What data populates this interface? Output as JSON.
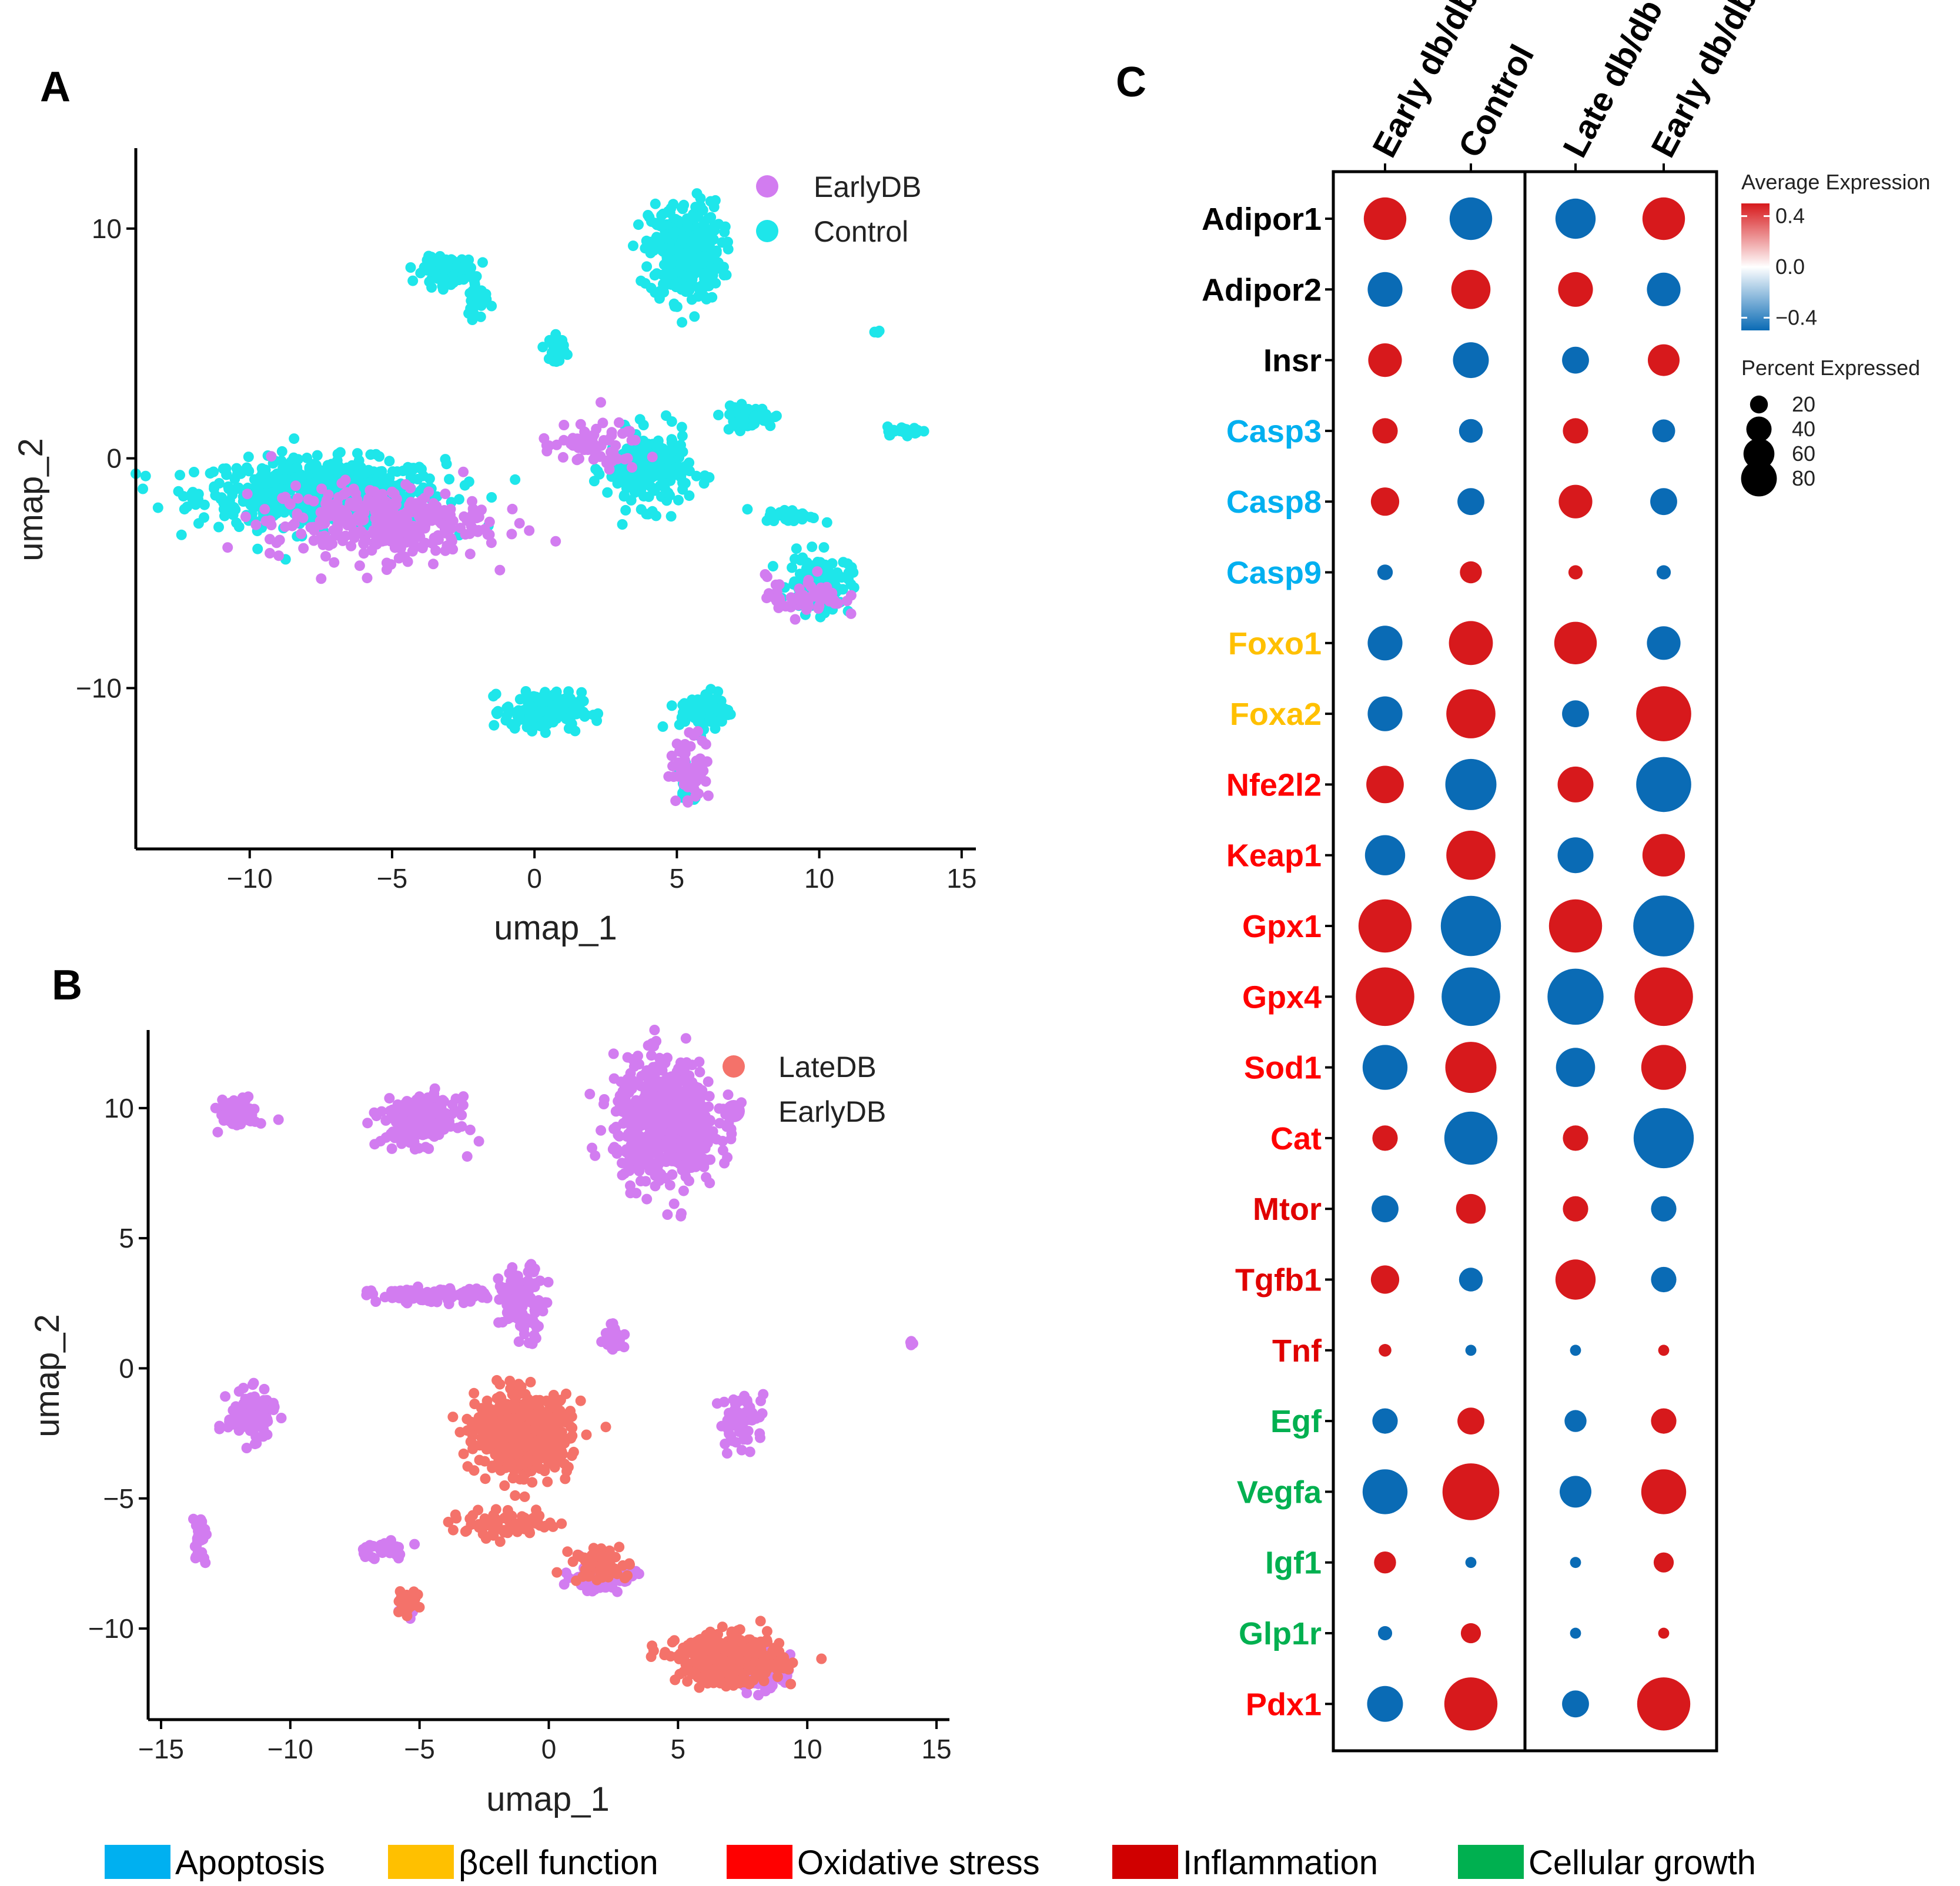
{
  "panel_letters": [
    "A",
    "B",
    "C"
  ],
  "colors": {
    "earlydb": "#d27cf0",
    "control": "#1ee6ea",
    "latedb": "#f4726a",
    "high": "#d7191c",
    "mid": "#ffffff",
    "low": "#0a6bb5"
  },
  "chart_data": [
    {
      "type": "scatter",
      "panel": "A",
      "xlabel": "umap_1",
      "ylabel": "umap_2",
      "xlim": [
        -14,
        15.5
      ],
      "ylim": [
        -17,
        13.5
      ],
      "xticks": [
        -10,
        -5,
        0,
        5,
        10,
        15
      ],
      "yticks": [
        -10,
        0,
        10
      ],
      "xtick_labels": [
        "−10",
        "−5",
        "0",
        "5",
        "10",
        "15"
      ],
      "ytick_labels": [
        "−10",
        "0",
        "10"
      ],
      "legend": [
        "EarlyDB",
        "Control"
      ],
      "series": [
        {
          "name": "EarlyDB",
          "color": "#d27cf0",
          "clusters": [
            [
              -5.5,
              -2.8,
              4.2,
              1.8,
              320
            ],
            [
              2.0,
              0.5,
              2.0,
              1.2,
              60
            ],
            [
              9.5,
              -6.0,
              1.5,
              1.0,
              60
            ],
            [
              5.5,
              -13.5,
              0.8,
              1.6,
              60
            ]
          ]
        },
        {
          "name": "Control",
          "color": "#1ee6ea",
          "clusters": [
            [
              -7.5,
              -1.5,
              4.8,
              1.6,
              600
            ],
            [
              5.3,
              9.0,
              1.4,
              2.4,
              350
            ],
            [
              -3.0,
              8.2,
              1.0,
              0.6,
              120
            ],
            [
              0.8,
              4.8,
              0.3,
              0.6,
              40
            ],
            [
              4.0,
              -0.5,
              1.6,
              1.8,
              220
            ],
            [
              10.0,
              -5.5,
              1.2,
              1.4,
              120
            ],
            [
              0.3,
              -11.0,
              1.5,
              0.9,
              180
            ],
            [
              6.0,
              -11.0,
              1.0,
              1.0,
              80
            ],
            [
              5.4,
              -14.0,
              0.4,
              1.0,
              40
            ],
            [
              13.0,
              1.2,
              0.7,
              0.2,
              30
            ],
            [
              9.0,
              -2.5,
              1.0,
              0.3,
              40
            ],
            [
              -2.0,
              7.0,
              0.4,
              1.0,
              40
            ],
            [
              12.0,
              5.5,
              0.1,
              0.1,
              6
            ],
            [
              7.5,
              1.8,
              1.0,
              0.5,
              80
            ]
          ]
        }
      ]
    },
    {
      "type": "scatter",
      "panel": "B",
      "xlabel": "umap_1",
      "ylabel": "umap_2",
      "xlim": [
        -15.5,
        15.5
      ],
      "ylim": [
        -13.5,
        13
      ],
      "xticks": [
        -15,
        -10,
        -5,
        0,
        5,
        10,
        15
      ],
      "yticks": [
        -10,
        -5,
        0,
        5,
        10
      ],
      "xtick_labels": [
        "−15",
        "−10",
        "−5",
        "0",
        "5",
        "10",
        "15"
      ],
      "ytick_labels": [
        "−10",
        "−5",
        "0",
        "5",
        "10"
      ],
      "legend": [
        "LateDB",
        "EarlyDB"
      ],
      "series": [
        {
          "name": "LateDB",
          "color": "#f4726a",
          "clusters": [
            [
              -1.0,
              -2.5,
              2.0,
              1.6,
              600
            ],
            [
              7.0,
              -11.2,
              2.2,
              1.0,
              450
            ],
            [
              -1.5,
              -6.0,
              2.5,
              0.5,
              80
            ],
            [
              2.0,
              -7.5,
              1.2,
              0.8,
              60
            ],
            [
              -5.5,
              -9.0,
              0.5,
              0.4,
              40
            ]
          ]
        },
        {
          "name": "EarlyDB",
          "color": "#d27cf0",
          "clusters": [
            [
              4.5,
              9.5,
              2.2,
              2.6,
              600
            ],
            [
              -5.0,
              9.5,
              1.6,
              1.0,
              200
            ],
            [
              -12.0,
              9.8,
              0.8,
              0.6,
              80
            ],
            [
              -11.5,
              -1.8,
              1.0,
              1.0,
              120
            ],
            [
              -4.5,
              2.8,
              2.5,
              0.3,
              120
            ],
            [
              -1.0,
              2.5,
              1.0,
              1.5,
              100
            ],
            [
              2.5,
              1.2,
              0.4,
              0.6,
              30
            ],
            [
              7.5,
              -2.0,
              1.0,
              1.2,
              60
            ],
            [
              8.0,
              -11.5,
              1.2,
              0.8,
              200
            ],
            [
              -13.5,
              -6.5,
              0.3,
              1.0,
              30
            ],
            [
              2.0,
              -8.0,
              1.5,
              0.6,
              80
            ],
            [
              -6.5,
              -7.0,
              1.2,
              0.4,
              30
            ],
            [
              14.0,
              1.0,
              0.1,
              0.1,
              6
            ],
            [
              -5.5,
              -9.3,
              0.4,
              0.3,
              30
            ]
          ]
        }
      ]
    },
    {
      "type": "dotplot",
      "panel": "C",
      "columns": [
        "Early db/db",
        "Control",
        "Late db/db",
        "Early db/db"
      ],
      "column_groups": [
        [
          0,
          1
        ],
        [
          2,
          3
        ]
      ],
      "genes": [
        {
          "name": "Adipor1",
          "category": "none",
          "exp": [
            0.5,
            -0.5,
            -0.5,
            0.5
          ],
          "pct": [
            45,
            45,
            40,
            45
          ]
        },
        {
          "name": "Adipor2",
          "category": "none",
          "exp": [
            -0.5,
            0.5,
            0.5,
            -0.5
          ],
          "pct": [
            30,
            38,
            30,
            28
          ]
        },
        {
          "name": "Insr",
          "category": "none",
          "exp": [
            0.5,
            -0.5,
            -0.5,
            0.5
          ],
          "pct": [
            28,
            32,
            18,
            25
          ]
        },
        {
          "name": "Casp3",
          "category": "apoptosis",
          "exp": [
            0.5,
            -0.5,
            0.5,
            -0.5
          ],
          "pct": [
            16,
            14,
            16,
            13
          ]
        },
        {
          "name": "Casp8",
          "category": "apoptosis",
          "exp": [
            0.5,
            -0.5,
            0.5,
            -0.5
          ],
          "pct": [
            20,
            18,
            28,
            18
          ]
        },
        {
          "name": "Casp9",
          "category": "apoptosis",
          "exp": [
            -0.5,
            0.5,
            0.5,
            -0.5
          ],
          "pct": [
            6,
            12,
            5,
            5
          ]
        },
        {
          "name": "Foxo1",
          "category": "beta",
          "exp": [
            -0.5,
            0.5,
            0.5,
            -0.5
          ],
          "pct": [
            30,
            48,
            45,
            28
          ]
        },
        {
          "name": "Foxa2",
          "category": "beta",
          "exp": [
            -0.5,
            0.5,
            -0.5,
            0.5
          ],
          "pct": [
            30,
            60,
            18,
            75
          ]
        },
        {
          "name": "Nfe2l2",
          "category": "oxidative",
          "exp": [
            0.5,
            -0.5,
            0.5,
            -0.5
          ],
          "pct": [
            35,
            65,
            32,
            75
          ]
        },
        {
          "name": "Keap1",
          "category": "oxidative",
          "exp": [
            -0.5,
            0.5,
            -0.5,
            0.5
          ],
          "pct": [
            40,
            60,
            32,
            45
          ]
        },
        {
          "name": "Gpx1",
          "category": "oxidative",
          "exp": [
            0.5,
            -0.5,
            0.5,
            -0.5
          ],
          "pct": [
            70,
            90,
            70,
            92
          ]
        },
        {
          "name": "Gpx4",
          "category": "oxidative",
          "exp": [
            0.5,
            -0.5,
            -0.5,
            0.5
          ],
          "pct": [
            85,
            85,
            78,
            85
          ]
        },
        {
          "name": "Sod1",
          "category": "oxidative",
          "exp": [
            -0.5,
            0.5,
            -0.5,
            0.5
          ],
          "pct": [
            50,
            65,
            38,
            50
          ]
        },
        {
          "name": "Cat",
          "category": "oxidative",
          "exp": [
            0.5,
            -0.5,
            0.5,
            -0.5
          ],
          "pct": [
            16,
            70,
            16,
            90
          ]
        },
        {
          "name": "Mtor",
          "category": "inflammation",
          "exp": [
            -0.5,
            0.5,
            0.5,
            -0.5
          ],
          "pct": [
            18,
            22,
            16,
            16
          ]
        },
        {
          "name": "Tgfb1",
          "category": "inflammation",
          "exp": [
            0.5,
            -0.5,
            0.5,
            -0.5
          ],
          "pct": [
            20,
            14,
            40,
            16
          ]
        },
        {
          "name": "Tnf",
          "category": "inflammation",
          "exp": [
            0.5,
            -0.5,
            -0.5,
            0.5
          ],
          "pct": [
            4,
            3,
            3,
            3
          ]
        },
        {
          "name": "Egf",
          "category": "growth",
          "exp": [
            -0.5,
            0.5,
            -0.5,
            0.5
          ],
          "pct": [
            16,
            18,
            12,
            16
          ]
        },
        {
          "name": "Vegfa",
          "category": "growth",
          "exp": [
            -0.5,
            0.5,
            -0.5,
            0.5
          ],
          "pct": [
            50,
            80,
            25,
            50
          ]
        },
        {
          "name": "Igf1",
          "category": "growth",
          "exp": [
            0.5,
            -0.5,
            -0.5,
            0.5
          ],
          "pct": [
            12,
            3,
            3,
            10
          ]
        },
        {
          "name": "Glp1r",
          "category": "growth",
          "exp": [
            -0.5,
            0.5,
            -0.5,
            0.5
          ],
          "pct": [
            5,
            10,
            3,
            3
          ]
        },
        {
          "name": "Pdx1",
          "category": "oxidative",
          "exp": [
            -0.5,
            0.5,
            -0.5,
            0.5
          ],
          "pct": [
            32,
            70,
            18,
            70
          ]
        }
      ],
      "legend_color": {
        "title": "Average Expression",
        "ticks": [
          0.4,
          0.0,
          -0.4
        ],
        "tick_labels": [
          "0.4",
          "0.0",
          "−0.4"
        ],
        "range": [
          -0.5,
          0.5
        ]
      },
      "legend_size": {
        "title": "Percent Expressed",
        "values": [
          20,
          40,
          60,
          80
        ]
      }
    }
  ],
  "categories_legend": [
    {
      "key": "apoptosis",
      "label": "Apoptosis",
      "color": "#00b0f0"
    },
    {
      "key": "beta",
      "label": "βcell function",
      "color": "#ffc000"
    },
    {
      "key": "oxidative",
      "label": "Oxidative stress",
      "color": "#ff0000"
    },
    {
      "key": "inflammation",
      "label": "Inflammation",
      "color": "#d00000"
    },
    {
      "key": "growth",
      "label": "Cellular growth",
      "color": "#00b050"
    }
  ],
  "gene_label_colors": {
    "none": "#000000",
    "apoptosis": "#00b0f0",
    "beta": "#ffc000",
    "oxidative": "#ff0000",
    "inflammation": "#e00000",
    "growth": "#00b050"
  }
}
